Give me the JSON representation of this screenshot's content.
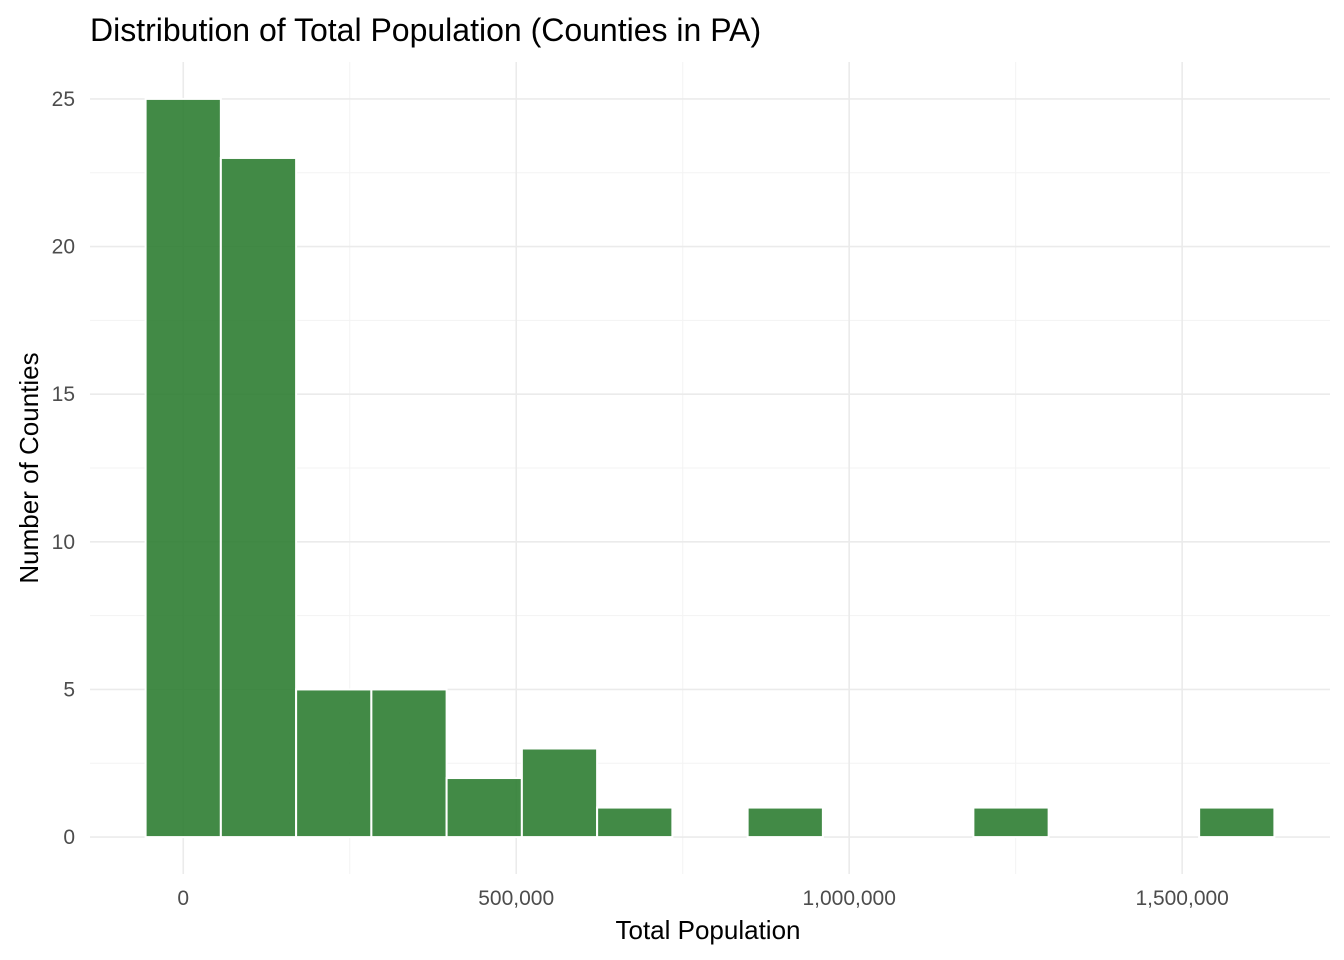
{
  "chart_data": {
    "type": "bar",
    "title": "Distribution of Total Population (Counties in PA)",
    "xlabel": "Total Population",
    "ylabel": "Number of Counties",
    "bin_width": 113000,
    "bins": [
      {
        "start": -56500,
        "end": 56500,
        "count": 25
      },
      {
        "start": 56500,
        "end": 169500,
        "count": 23
      },
      {
        "start": 169500,
        "end": 282500,
        "count": 5
      },
      {
        "start": 282500,
        "end": 395500,
        "count": 5
      },
      {
        "start": 395500,
        "end": 508500,
        "count": 2
      },
      {
        "start": 508500,
        "end": 621500,
        "count": 3
      },
      {
        "start": 621500,
        "end": 734500,
        "count": 1
      },
      {
        "start": 734500,
        "end": 847500,
        "count": 0
      },
      {
        "start": 847500,
        "end": 960500,
        "count": 1
      },
      {
        "start": 960500,
        "end": 1073500,
        "count": 0
      },
      {
        "start": 1073500,
        "end": 1186500,
        "count": 0
      },
      {
        "start": 1186500,
        "end": 1299500,
        "count": 1
      },
      {
        "start": 1299500,
        "end": 1412500,
        "count": 0
      },
      {
        "start": 1412500,
        "end": 1525500,
        "count": 0
      },
      {
        "start": 1525500,
        "end": 1638500,
        "count": 1
      }
    ],
    "xlim": [
      -140000,
      1722000
    ],
    "ylim": [
      -1.25,
      26.25
    ],
    "x_ticks": [
      0,
      500000,
      1000000,
      1500000
    ],
    "x_tick_labels": [
      "0",
      "500,000",
      "1,000,000",
      "1,500,000"
    ],
    "x_minor_ticks": [
      250000,
      750000,
      1250000
    ],
    "y_ticks": [
      0,
      5,
      10,
      15,
      20,
      25
    ],
    "y_tick_labels": [
      "0",
      "5",
      "10",
      "15",
      "20",
      "25"
    ],
    "y_minor_ticks": [
      2.5,
      7.5,
      12.5,
      17.5,
      22.5
    ],
    "bar_color": "#2e7d32",
    "bar_opacity": 0.9,
    "grid": true,
    "legend": "none"
  }
}
